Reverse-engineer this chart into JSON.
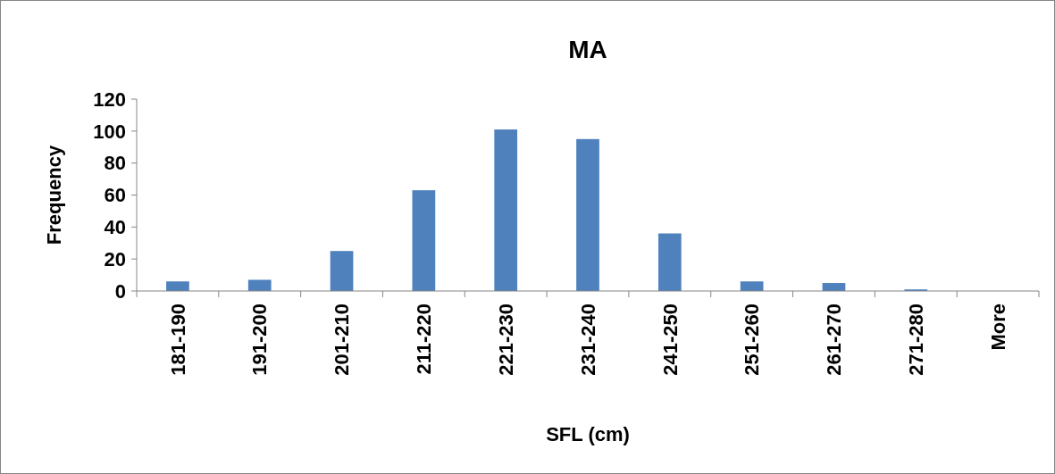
{
  "chart_data": {
    "type": "bar",
    "title": "MA",
    "xlabel": "SFL (cm)",
    "ylabel": "Frequency",
    "categories": [
      "181-190",
      "191-200",
      "201-210",
      "211-220",
      "221-230",
      "231-240",
      "241-250",
      "251-260",
      "261-270",
      "271-280",
      "More"
    ],
    "values": [
      6,
      7,
      25,
      63,
      101,
      95,
      36,
      6,
      5,
      1,
      0
    ],
    "color": "#4f81bd",
    "ylim": [
      0,
      120
    ],
    "yticks": [
      0,
      20,
      40,
      60,
      80,
      100,
      120
    ],
    "grid": false
  }
}
